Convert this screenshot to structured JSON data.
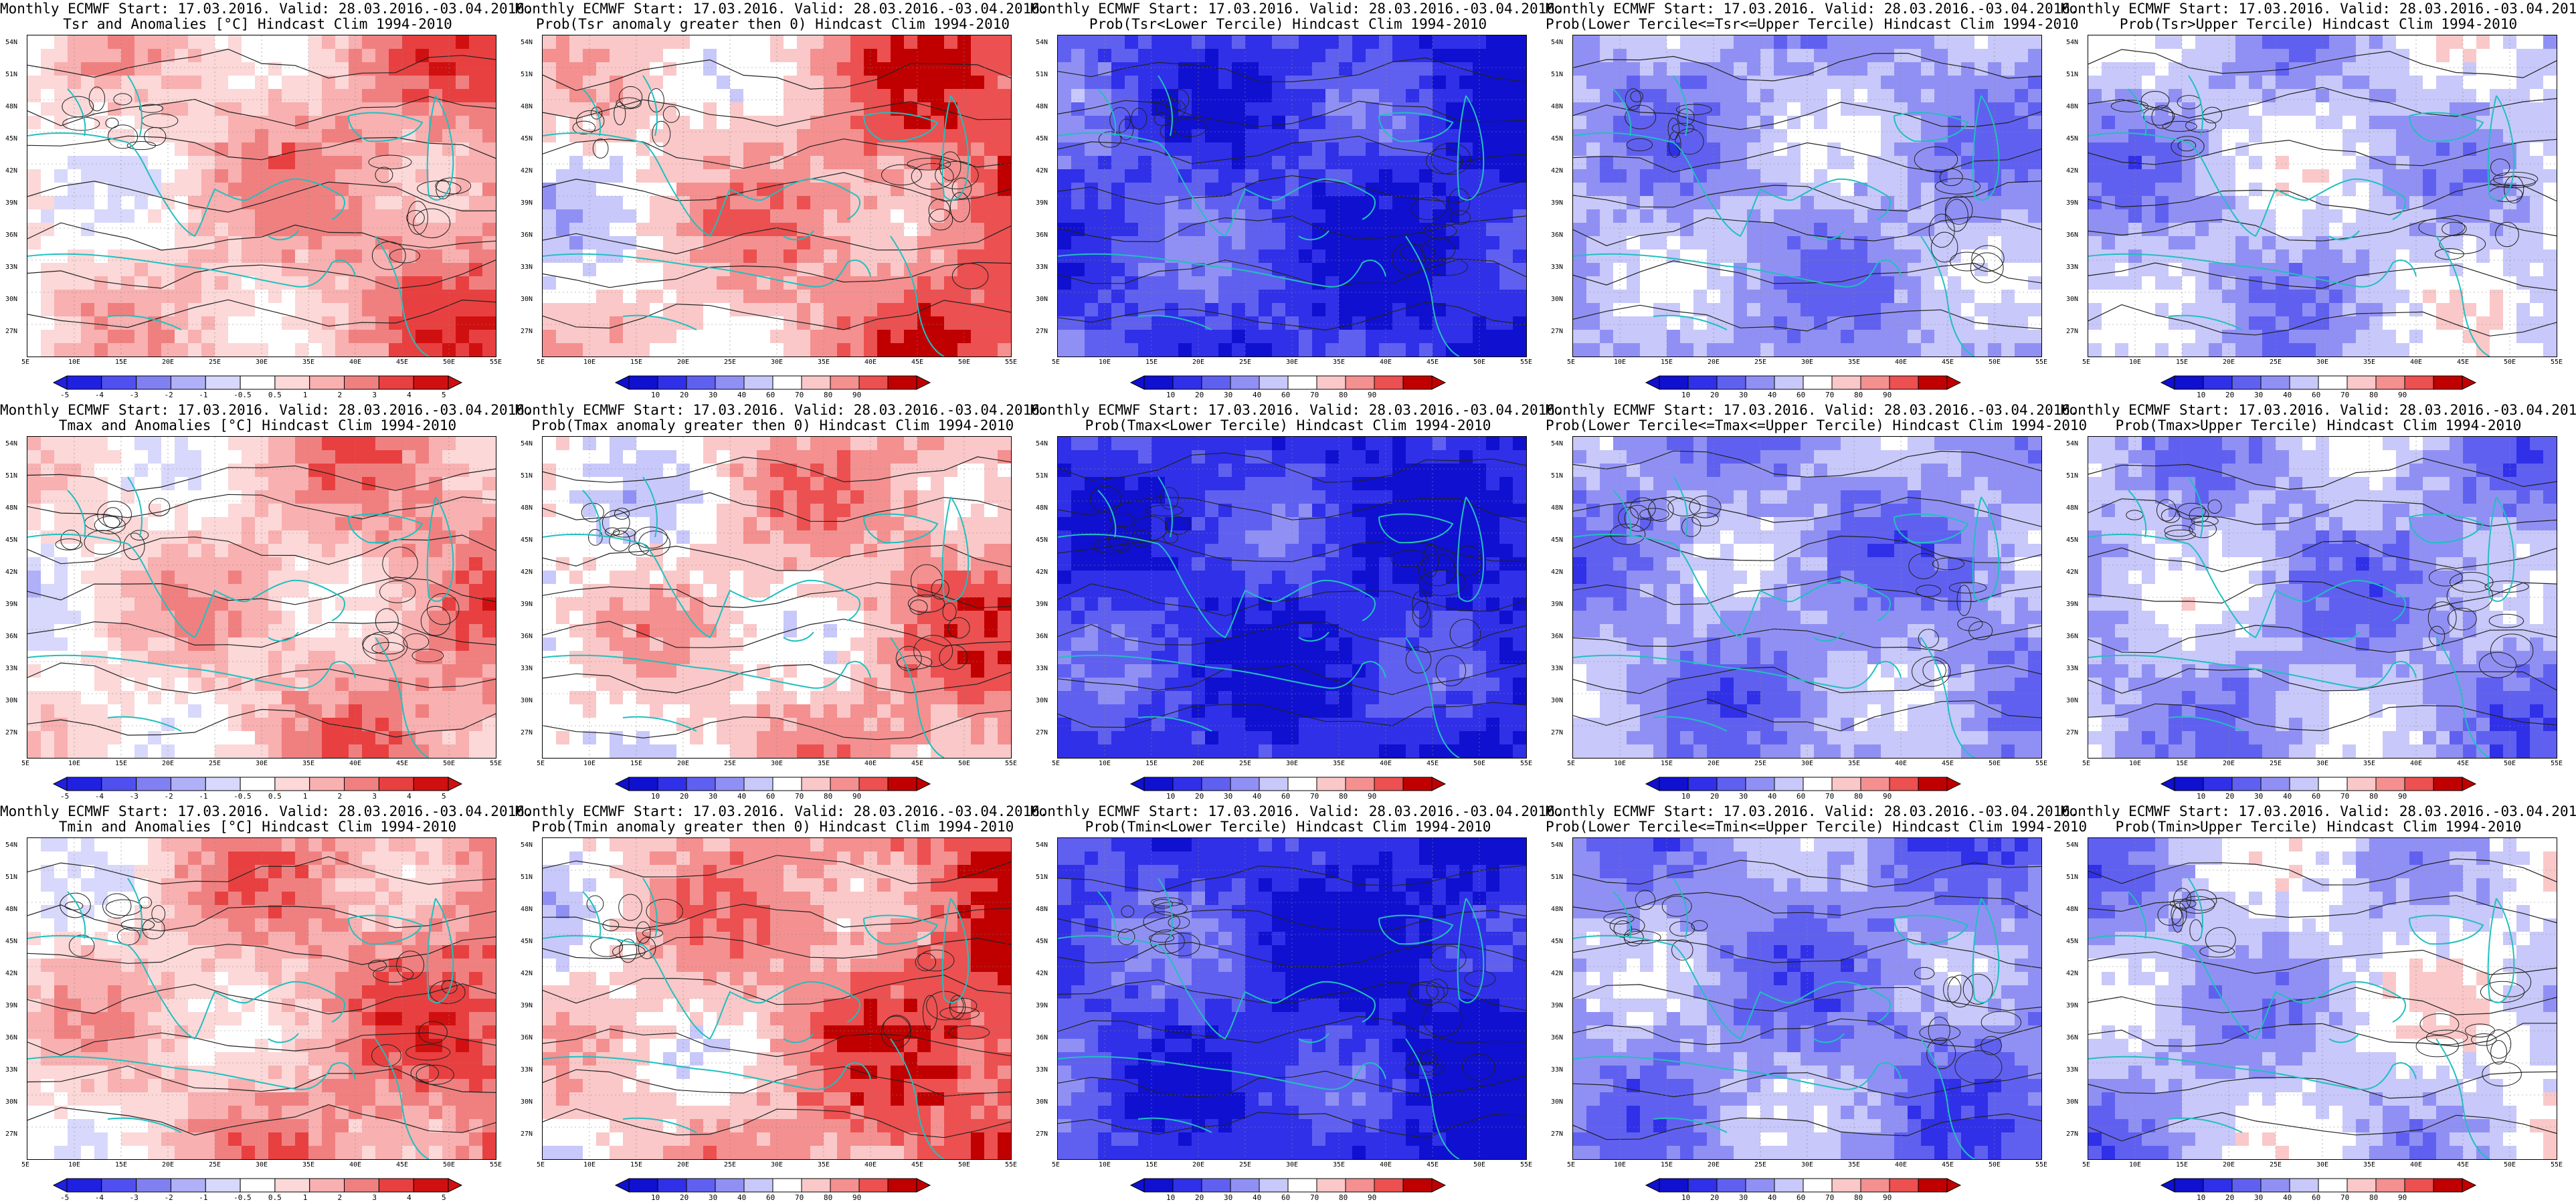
{
  "colors": {
    "land_cyan": "#20c0c0",
    "contour": "#222222",
    "anomaly_scale": [
      "#2020e0",
      "#5050f0",
      "#8080f0",
      "#b0b0f8",
      "#d8d8fc",
      "#ffffff",
      "#fcd8d8",
      "#f8b0b0",
      "#f08080",
      "#e84040",
      "#d01010"
    ],
    "prob_scale": [
      "#1010d0",
      "#3030e8",
      "#6060f0",
      "#9090f4",
      "#c8c8fa",
      "#ffffff",
      "#fac8c8",
      "#f49090",
      "#ec5050",
      "#c00000"
    ]
  },
  "lat_labels": [
    "54N",
    "51N",
    "48N",
    "45N",
    "42N",
    "39N",
    "36N",
    "33N",
    "30N",
    "27N"
  ],
  "lon_labels": [
    "5E",
    "10E",
    "15E",
    "20E",
    "25E",
    "30E",
    "35E",
    "40E",
    "45E",
    "50E",
    "55E"
  ],
  "anom_ticks": [
    "-5",
    "-4",
    "-3",
    "-2",
    "-1",
    "-0.5",
    "0.5",
    "1",
    "2",
    "3",
    "4",
    "5"
  ],
  "prob_ticks": [
    "10",
    "20",
    "30",
    "40",
    "60",
    "70",
    "80",
    "90"
  ],
  "panels": [
    {
      "line1": "Monthly ECMWF Start: 17.03.2016. Valid: 28.03.2016.-03.04.2016.",
      "line2": "Tsr and Anomalies [°C] Hindcast Clim 1994-2010",
      "kind": "anomaly",
      "field_bias": 0.35,
      "field_grad": 0.35,
      "icon": "temperature-anomaly-map"
    },
    {
      "line1": "Monthly ECMWF Start: 17.03.2016. Valid: 28.03.2016.-03.04.2016.",
      "line2": "Prob(Tsr anomaly greater then 0) Hindcast Clim 1994-2010",
      "kind": "prob",
      "field_bias": 0.45,
      "field_grad": 0.45,
      "icon": "probability-map"
    },
    {
      "line1": "Monthly ECMWF Start: 17.03.2016. Valid: 28.03.2016.-03.04.2016.",
      "line2": "Prob(Tsr<Lower Tercile) Hindcast Clim 1994-2010",
      "kind": "prob",
      "field_bias": -0.75,
      "field_grad": -0.2,
      "icon": "probability-map"
    },
    {
      "line1": "Monthly ECMWF Start: 17.03.2016. Valid: 28.03.2016.-03.04.2016.",
      "line2": "Prob(Lower Tercile<=Tsr<=Upper Tercile) Hindcast Clim 1994-2010",
      "kind": "prob",
      "field_bias": -0.25,
      "field_grad": 0.0,
      "icon": "probability-map"
    },
    {
      "line1": "Monthly ECMWF Start: 17.03.2016. Valid: 28.03.2016.-03.04.2016.",
      "line2": "Prob(Tsr>Upper Tercile) Hindcast Clim 1994-2010",
      "kind": "prob",
      "field_bias": -0.15,
      "field_grad": 0.1,
      "icon": "probability-map"
    },
    {
      "line1": "Monthly ECMWF Start: 17.03.2016. Valid: 28.03.2016.-03.04.2016.",
      "line2": "Tmax and Anomalies [°C] Hindcast Clim 1994-2010",
      "kind": "anomaly",
      "field_bias": 0.3,
      "field_grad": 0.3,
      "icon": "temperature-anomaly-map"
    },
    {
      "line1": "Monthly ECMWF Start: 17.03.2016. Valid: 28.03.2016.-03.04.2016.",
      "line2": "Prob(Tmax anomaly greater then 0) Hindcast Clim 1994-2010",
      "kind": "prob",
      "field_bias": 0.35,
      "field_grad": 0.3,
      "icon": "probability-map"
    },
    {
      "line1": "Monthly ECMWF Start: 17.03.2016. Valid: 28.03.2016.-03.04.2016.",
      "line2": "Prob(Tmax<Lower Tercile) Hindcast Clim 1994-2010",
      "kind": "prob",
      "field_bias": -0.8,
      "field_grad": -0.1,
      "icon": "probability-map"
    },
    {
      "line1": "Monthly ECMWF Start: 17.03.2016. Valid: 28.03.2016.-03.04.2016.",
      "line2": "Prob(Lower Tercile<=Tmax<=Upper Tercile) Hindcast Clim 1994-2010",
      "kind": "prob",
      "field_bias": -0.3,
      "field_grad": 0.0,
      "icon": "probability-map"
    },
    {
      "line1": "Monthly ECMWF Start: 17.03.2016. Valid: 28.03.2016.-03.04.2016.",
      "line2": "Prob(Tmax>Upper Tercile) Hindcast Clim 1994-2010",
      "kind": "prob",
      "field_bias": -0.25,
      "field_grad": -0.1,
      "icon": "probability-map"
    },
    {
      "line1": "Monthly ECMWF Start: 17.03.2016. Valid: 28.03.2016.-03.04.2016.",
      "line2": "Tmin and Anomalies [°C] Hindcast Clim 1994-2010",
      "kind": "anomaly",
      "field_bias": 0.4,
      "field_grad": 0.35,
      "icon": "temperature-anomaly-map"
    },
    {
      "line1": "Monthly ECMWF Start: 17.03.2016. Valid: 28.03.2016.-03.04.2016.",
      "line2": "Prob(Tmin anomaly greater then 0) Hindcast Clim 1994-2010",
      "kind": "prob",
      "field_bias": 0.5,
      "field_grad": 0.45,
      "icon": "probability-map"
    },
    {
      "line1": "Monthly ECMWF Start: 17.03.2016. Valid: 28.03.2016.-03.04.2016.",
      "line2": "Prob(Tmin<Lower Tercile) Hindcast Clim 1994-2010",
      "kind": "prob",
      "field_bias": -0.8,
      "field_grad": -0.25,
      "icon": "probability-map"
    },
    {
      "line1": "Monthly ECMWF Start: 17.03.2016. Valid: 28.03.2016.-03.04.2016.",
      "line2": "Prob(Lower Tercile<=Tmin<=Upper Tercile) Hindcast Clim 1994-2010",
      "kind": "prob",
      "field_bias": -0.35,
      "field_grad": -0.1,
      "icon": "probability-map"
    },
    {
      "line1": "Monthly ECMWF Start: 17.03.2016. Valid: 28.03.2016.-03.04.2016.",
      "line2": "Prob(Tmin>Upper Tercile) Hindcast Clim 1994-2010",
      "kind": "prob",
      "field_bias": -0.1,
      "field_grad": 0.2,
      "icon": "probability-map"
    }
  ]
}
